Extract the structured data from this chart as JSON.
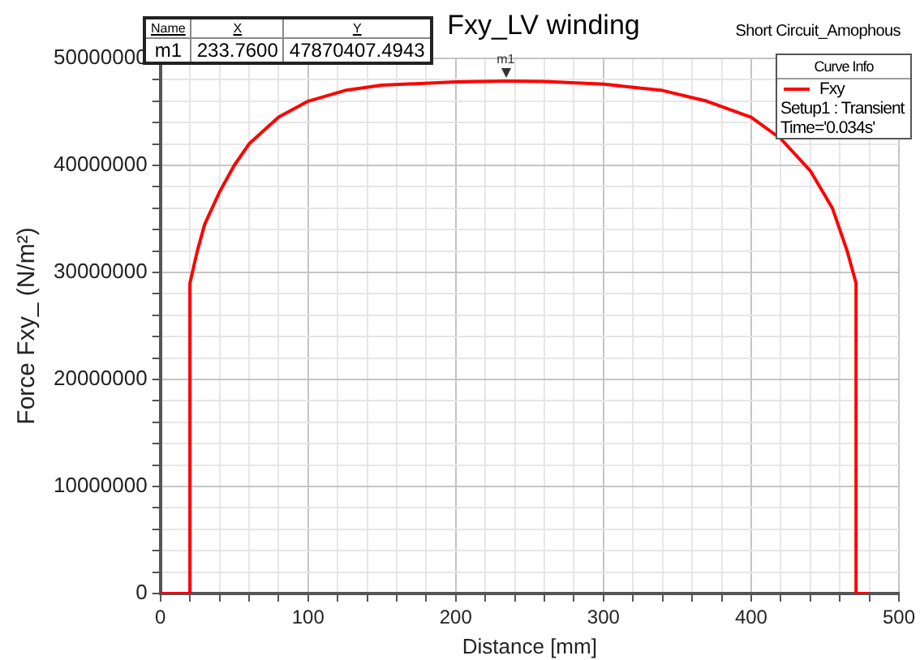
{
  "chart_data": {
    "type": "line",
    "title": "Fxy_LV winding",
    "xlabel": "Distance [mm]",
    "ylabel": "Force Fxy_ (N/m²)",
    "legend_title": "Curve Info",
    "legend": "top right",
    "grid": true,
    "annotations": [
      {
        "text": "m1",
        "x": 233.76,
        "y": 47870407.4943
      },
      "Name",
      "X",
      "Y",
      "m1",
      "233.7600",
      "47870407.4943",
      "Short Circuit_Amophous",
      "Setup1 : Transient",
      "Time='0.034s'"
    ],
    "x": [
      0,
      20,
      20,
      25,
      30,
      40,
      50,
      60,
      80,
      100,
      125,
      150,
      200,
      233.76,
      260,
      300,
      340,
      370,
      400,
      420,
      440,
      455,
      465,
      471,
      471,
      480
    ],
    "series": [
      {
        "name": "Fxy",
        "color": "#ff0000",
        "values": [
          0,
          0,
          29000000,
          32000000,
          34500000,
          37500000,
          40000000,
          42000000,
          44500000,
          46000000,
          47000000,
          47500000,
          47800000,
          47870000,
          47850000,
          47600000,
          47000000,
          46000000,
          44500000,
          42500000,
          39500000,
          36000000,
          32000000,
          29000000,
          0,
          0
        ]
      }
    ],
    "xlim": [
      0,
      500
    ],
    "ylim": [
      0,
      50000000
    ],
    "xticks": [
      0,
      {
        "value": 20,
        "label": null
      },
      {
        "value": 40,
        "label": null
      },
      {
        "value": 60,
        "label": null
      },
      {
        "value": 80,
        "label": null
      },
      100,
      {
        "value": 120,
        "label": null
      },
      {
        "value": 140,
        "label": null
      },
      {
        "value": 160,
        "label": null
      },
      {
        "value": 180,
        "label": null
      },
      200,
      {
        "value": 220,
        "label": null
      },
      {
        "value": 240,
        "label": null
      },
      {
        "value": 260,
        "label": null
      },
      {
        "value": 280,
        "label": null
      },
      300,
      {
        "value": 320,
        "label": null
      },
      {
        "value": 340,
        "label": null
      },
      {
        "value": 360,
        "label": null
      },
      {
        "value": 380,
        "label": null
      },
      400,
      {
        "value": 420,
        "label": null
      },
      {
        "value": 440,
        "label": null
      },
      {
        "value": 460,
        "label": null
      },
      {
        "value": 480,
        "label": null
      },
      500
    ],
    "yticks": [
      0,
      {
        "value": 2000000,
        "label": null
      },
      {
        "value": 4000000,
        "label": null
      },
      {
        "value": 6000000,
        "label": null
      },
      {
        "value": 8000000,
        "label": null
      },
      10000000,
      {
        "value": 12000000,
        "label": null
      },
      {
        "value": 14000000,
        "label": null
      },
      {
        "value": 16000000,
        "label": null
      },
      {
        "value": 18000000,
        "label": null
      },
      20000000,
      {
        "value": 22000000,
        "label": null
      },
      {
        "value": 24000000,
        "label": null
      },
      {
        "value": 26000000,
        "label": null
      },
      {
        "value": 28000000,
        "label": null
      },
      30000000,
      {
        "value": 32000000,
        "label": null
      },
      {
        "value": 34000000,
        "label": null
      },
      {
        "value": 36000000,
        "label": null
      },
      {
        "value": 38000000,
        "label": null
      },
      40000000,
      {
        "value": 42000000,
        "label": null
      },
      {
        "value": 44000000,
        "label": null
      },
      {
        "value": 46000000,
        "label": null
      },
      {
        "value": 48000000,
        "label": null
      },
      50000000
    ]
  }
}
